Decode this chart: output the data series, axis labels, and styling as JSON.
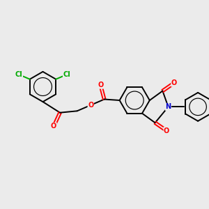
{
  "bg_color": "#ebebeb",
  "bond_color": "#000000",
  "bond_width": 1.4,
  "atom_colors": {
    "O": "#ff0000",
    "N": "#0000cc",
    "Cl": "#00aa00",
    "C": "#000000"
  },
  "font_size": 7.0,
  "figsize": [
    3.0,
    3.0
  ],
  "dpi": 100
}
